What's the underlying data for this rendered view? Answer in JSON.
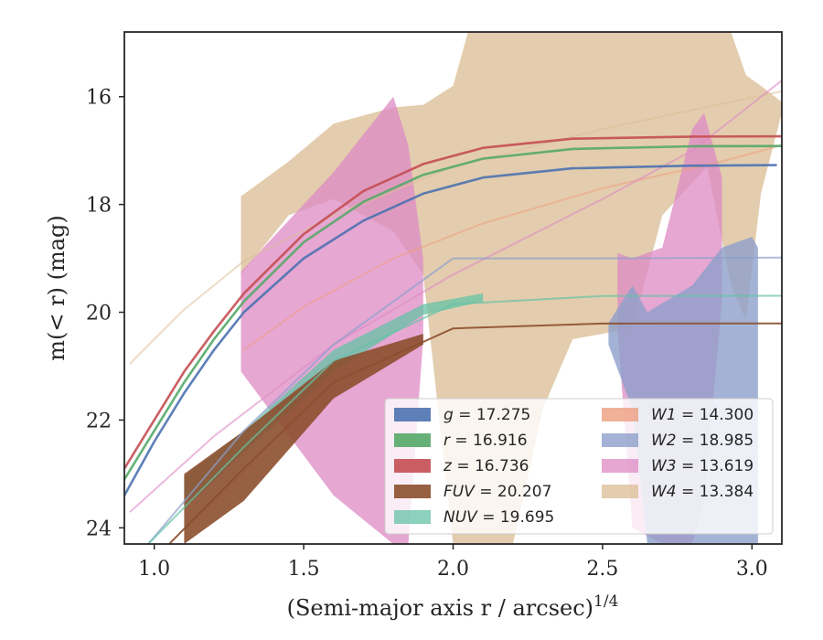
{
  "chart_data": {
    "type": "area",
    "xlabel": "(Semi-major axis r / arcsec)",
    "xlabel_sup": "1/4",
    "ylabel": "m(< r) (mag)",
    "xlim": [
      0.9,
      3.1
    ],
    "ylim": [
      24.3,
      14.8
    ],
    "y_inverted": true,
    "xticks": [
      1.0,
      1.5,
      2.0,
      2.5,
      3.0
    ],
    "xtick_labels": [
      "1.0",
      "1.5",
      "2.0",
      "2.5",
      "3.0"
    ],
    "yticks": [
      16,
      18,
      20,
      22,
      24
    ],
    "ytick_labels": [
      "16",
      "18",
      "20",
      "22",
      "24"
    ],
    "grid": false,
    "legend_position": "lower right",
    "legend_columns": 2,
    "legend_entries": [
      {
        "band": "g",
        "value": "17.275"
      },
      {
        "band": "r",
        "value": "16.916"
      },
      {
        "band": "z",
        "value": "16.736"
      },
      {
        "band": "FUV",
        "value": "20.207"
      },
      {
        "band": "NUV",
        "value": "19.695"
      },
      {
        "band": "W1",
        "value": "14.300"
      },
      {
        "band": "W2",
        "value": "18.985"
      },
      {
        "band": "W3",
        "value": "13.619"
      },
      {
        "band": "W4",
        "value": "13.384"
      }
    ],
    "series": [
      {
        "name": "W4",
        "color": "#dbbf97",
        "band": [
          {
            "x": 1.29,
            "lo": 17.85,
            "hi": 19.3
          },
          {
            "x": 1.45,
            "lo": 17.2,
            "hi": 18.2
          },
          {
            "x": 1.6,
            "lo": 16.5,
            "hi": 17.9
          },
          {
            "x": 1.8,
            "lo": 16.2,
            "hi": 18.5
          },
          {
            "x": 1.9,
            "lo": 16.15,
            "hi": 19.3
          },
          {
            "x": 2.0,
            "lo": 15.8,
            "hi": 24.3
          },
          {
            "x": 2.05,
            "lo": 14.8,
            "hi": 24.3
          },
          {
            "x": 2.2,
            "lo": 14.8,
            "hi": 24.3
          },
          {
            "x": 2.3,
            "lo": 14.8,
            "hi": 21.8
          },
          {
            "x": 2.4,
            "lo": 14.8,
            "hi": 20.5
          },
          {
            "x": 2.6,
            "lo": 14.8,
            "hi": 20.3
          },
          {
            "x": 2.7,
            "lo": 14.8,
            "hi": 18.2
          },
          {
            "x": 2.85,
            "lo": 14.8,
            "hi": 17.3
          },
          {
            "x": 2.93,
            "lo": 14.8,
            "hi": 19.5
          },
          {
            "x": 2.98,
            "lo": 15.6,
            "hi": 20.15
          },
          {
            "x": 3.03,
            "lo": 15.8,
            "hi": 17.8
          },
          {
            "x": 3.1,
            "lo": 16.1,
            "hi": 16.3
          }
        ],
        "curve": [
          {
            "x": 0.92,
            "y": 20.95
          },
          {
            "x": 1.0,
            "y": 20.5
          },
          {
            "x": 1.1,
            "y": 19.95
          },
          {
            "x": 1.3,
            "y": 19.05
          },
          {
            "x": 1.6,
            "y": 18.2
          },
          {
            "x": 2.0,
            "y": 17.3
          },
          {
            "x": 2.5,
            "y": 16.6
          },
          {
            "x": 3.1,
            "y": 15.9
          }
        ]
      },
      {
        "name": "W1",
        "color": "#ee9e80",
        "curve": [
          {
            "x": 1.3,
            "y": 20.7
          },
          {
            "x": 1.5,
            "y": 19.9
          },
          {
            "x": 1.8,
            "y": 19.0
          },
          {
            "x": 2.1,
            "y": 18.35
          },
          {
            "x": 2.5,
            "y": 17.7
          },
          {
            "x": 2.9,
            "y": 17.2
          },
          {
            "x": 3.1,
            "y": 16.9
          }
        ]
      },
      {
        "name": "W3",
        "color": "#dd8ac4",
        "band": [
          {
            "x": 1.29,
            "lo": 19.25,
            "hi": 21.1
          },
          {
            "x": 1.6,
            "lo": 17.4,
            "hi": 23.4
          },
          {
            "x": 1.8,
            "lo": 16.0,
            "hi": 24.3
          },
          {
            "x": 1.85,
            "lo": 16.9,
            "hi": 24.3
          },
          {
            "x": 1.9,
            "lo": 19.0,
            "hi": 20.5
          }
        ],
        "band2": [
          {
            "x": 2.55,
            "lo": 18.9,
            "hi": 20.3
          },
          {
            "x": 2.6,
            "lo": 19.0,
            "hi": 24.0
          },
          {
            "x": 2.7,
            "lo": 18.8,
            "hi": 24.3
          },
          {
            "x": 2.8,
            "lo": 16.6,
            "hi": 24.3
          },
          {
            "x": 2.84,
            "lo": 16.3,
            "hi": 23.5
          },
          {
            "x": 2.9,
            "lo": 17.5,
            "hi": 19.8
          }
        ],
        "curve": [
          {
            "x": 0.92,
            "y": 23.7
          },
          {
            "x": 1.2,
            "y": 22.3
          },
          {
            "x": 1.6,
            "y": 20.6
          },
          {
            "x": 2.0,
            "y": 19.3
          },
          {
            "x": 2.5,
            "y": 17.9
          },
          {
            "x": 2.8,
            "y": 17.0
          },
          {
            "x": 3.1,
            "y": 15.7
          }
        ]
      },
      {
        "name": "W2",
        "color": "#8da0cb",
        "band": [
          {
            "x": 2.52,
            "lo": 20.2,
            "hi": 20.6
          },
          {
            "x": 2.6,
            "lo": 19.5,
            "hi": 21.8
          },
          {
            "x": 2.65,
            "lo": 20.0,
            "hi": 24.3
          },
          {
            "x": 2.8,
            "lo": 19.5,
            "hi": 24.3
          },
          {
            "x": 2.9,
            "lo": 18.8,
            "hi": 24.3
          },
          {
            "x": 3.0,
            "lo": 18.6,
            "hi": 24.3
          },
          {
            "x": 3.02,
            "lo": 18.8,
            "hi": 24.3
          }
        ],
        "curve": [
          {
            "x": 0.98,
            "y": 24.3
          },
          {
            "x": 1.3,
            "y": 22.2
          },
          {
            "x": 1.6,
            "y": 20.6
          },
          {
            "x": 2.0,
            "y": 19.0
          },
          {
            "x": 2.5,
            "y": 19.0
          },
          {
            "x": 3.1,
            "y": 18.985
          }
        ]
      },
      {
        "name": "NUV",
        "color": "#66c2a5",
        "band": [
          {
            "x": 1.1,
            "lo": 23.05,
            "hi": 23.65
          },
          {
            "x": 1.3,
            "lo": 22.2,
            "hi": 22.6
          },
          {
            "x": 1.6,
            "lo": 20.7,
            "hi": 21.1
          },
          {
            "x": 1.9,
            "lo": 19.85,
            "hi": 20.05
          },
          {
            "x": 2.1,
            "lo": 19.65,
            "hi": 19.8
          }
        ],
        "curve": [
          {
            "x": 0.98,
            "y": 24.3
          },
          {
            "x": 1.3,
            "y": 22.5
          },
          {
            "x": 1.6,
            "y": 20.9
          },
          {
            "x": 2.0,
            "y": 19.85
          },
          {
            "x": 2.5,
            "y": 19.7
          },
          {
            "x": 3.1,
            "y": 19.695
          }
        ]
      },
      {
        "name": "FUV",
        "color": "#8c4f2d",
        "band": [
          {
            "x": 1.1,
            "lo": 23.0,
            "hi": 24.3
          },
          {
            "x": 1.3,
            "lo": 22.2,
            "hi": 23.5
          },
          {
            "x": 1.6,
            "lo": 20.9,
            "hi": 21.6
          },
          {
            "x": 1.9,
            "lo": 20.4,
            "hi": 20.6
          }
        ],
        "curve": [
          {
            "x": 1.05,
            "y": 24.3
          },
          {
            "x": 1.3,
            "y": 22.9
          },
          {
            "x": 1.6,
            "y": 21.3
          },
          {
            "x": 2.0,
            "y": 20.3
          },
          {
            "x": 2.5,
            "y": 20.21
          },
          {
            "x": 3.1,
            "y": 20.207
          }
        ]
      },
      {
        "name": "g",
        "color": "#4c72b0",
        "curve": [
          {
            "x": 0.9,
            "y": 23.4
          },
          {
            "x": 1.0,
            "y": 22.4
          },
          {
            "x": 1.1,
            "y": 21.5
          },
          {
            "x": 1.2,
            "y": 20.7
          },
          {
            "x": 1.3,
            "y": 20.0
          },
          {
            "x": 1.5,
            "y": 19.0
          },
          {
            "x": 1.7,
            "y": 18.3
          },
          {
            "x": 1.9,
            "y": 17.8
          },
          {
            "x": 2.1,
            "y": 17.5
          },
          {
            "x": 2.4,
            "y": 17.33
          },
          {
            "x": 2.8,
            "y": 17.28
          },
          {
            "x": 3.08,
            "y": 17.27
          }
        ]
      },
      {
        "name": "r",
        "color": "#55a868",
        "curve": [
          {
            "x": 0.9,
            "y": 23.1
          },
          {
            "x": 1.0,
            "y": 22.2
          },
          {
            "x": 1.1,
            "y": 21.3
          },
          {
            "x": 1.2,
            "y": 20.5
          },
          {
            "x": 1.3,
            "y": 19.8
          },
          {
            "x": 1.5,
            "y": 18.7
          },
          {
            "x": 1.7,
            "y": 17.95
          },
          {
            "x": 1.9,
            "y": 17.45
          },
          {
            "x": 2.1,
            "y": 17.15
          },
          {
            "x": 2.4,
            "y": 16.97
          },
          {
            "x": 2.8,
            "y": 16.92
          },
          {
            "x": 3.1,
            "y": 16.916
          }
        ]
      },
      {
        "name": "z",
        "color": "#c44e52",
        "curve": [
          {
            "x": 0.9,
            "y": 22.9
          },
          {
            "x": 1.0,
            "y": 22.0
          },
          {
            "x": 1.1,
            "y": 21.1
          },
          {
            "x": 1.2,
            "y": 20.35
          },
          {
            "x": 1.3,
            "y": 19.65
          },
          {
            "x": 1.5,
            "y": 18.55
          },
          {
            "x": 1.7,
            "y": 17.75
          },
          {
            "x": 1.9,
            "y": 17.25
          },
          {
            "x": 2.1,
            "y": 16.95
          },
          {
            "x": 2.4,
            "y": 16.78
          },
          {
            "x": 2.8,
            "y": 16.74
          },
          {
            "x": 3.1,
            "y": 16.736
          }
        ]
      }
    ]
  }
}
